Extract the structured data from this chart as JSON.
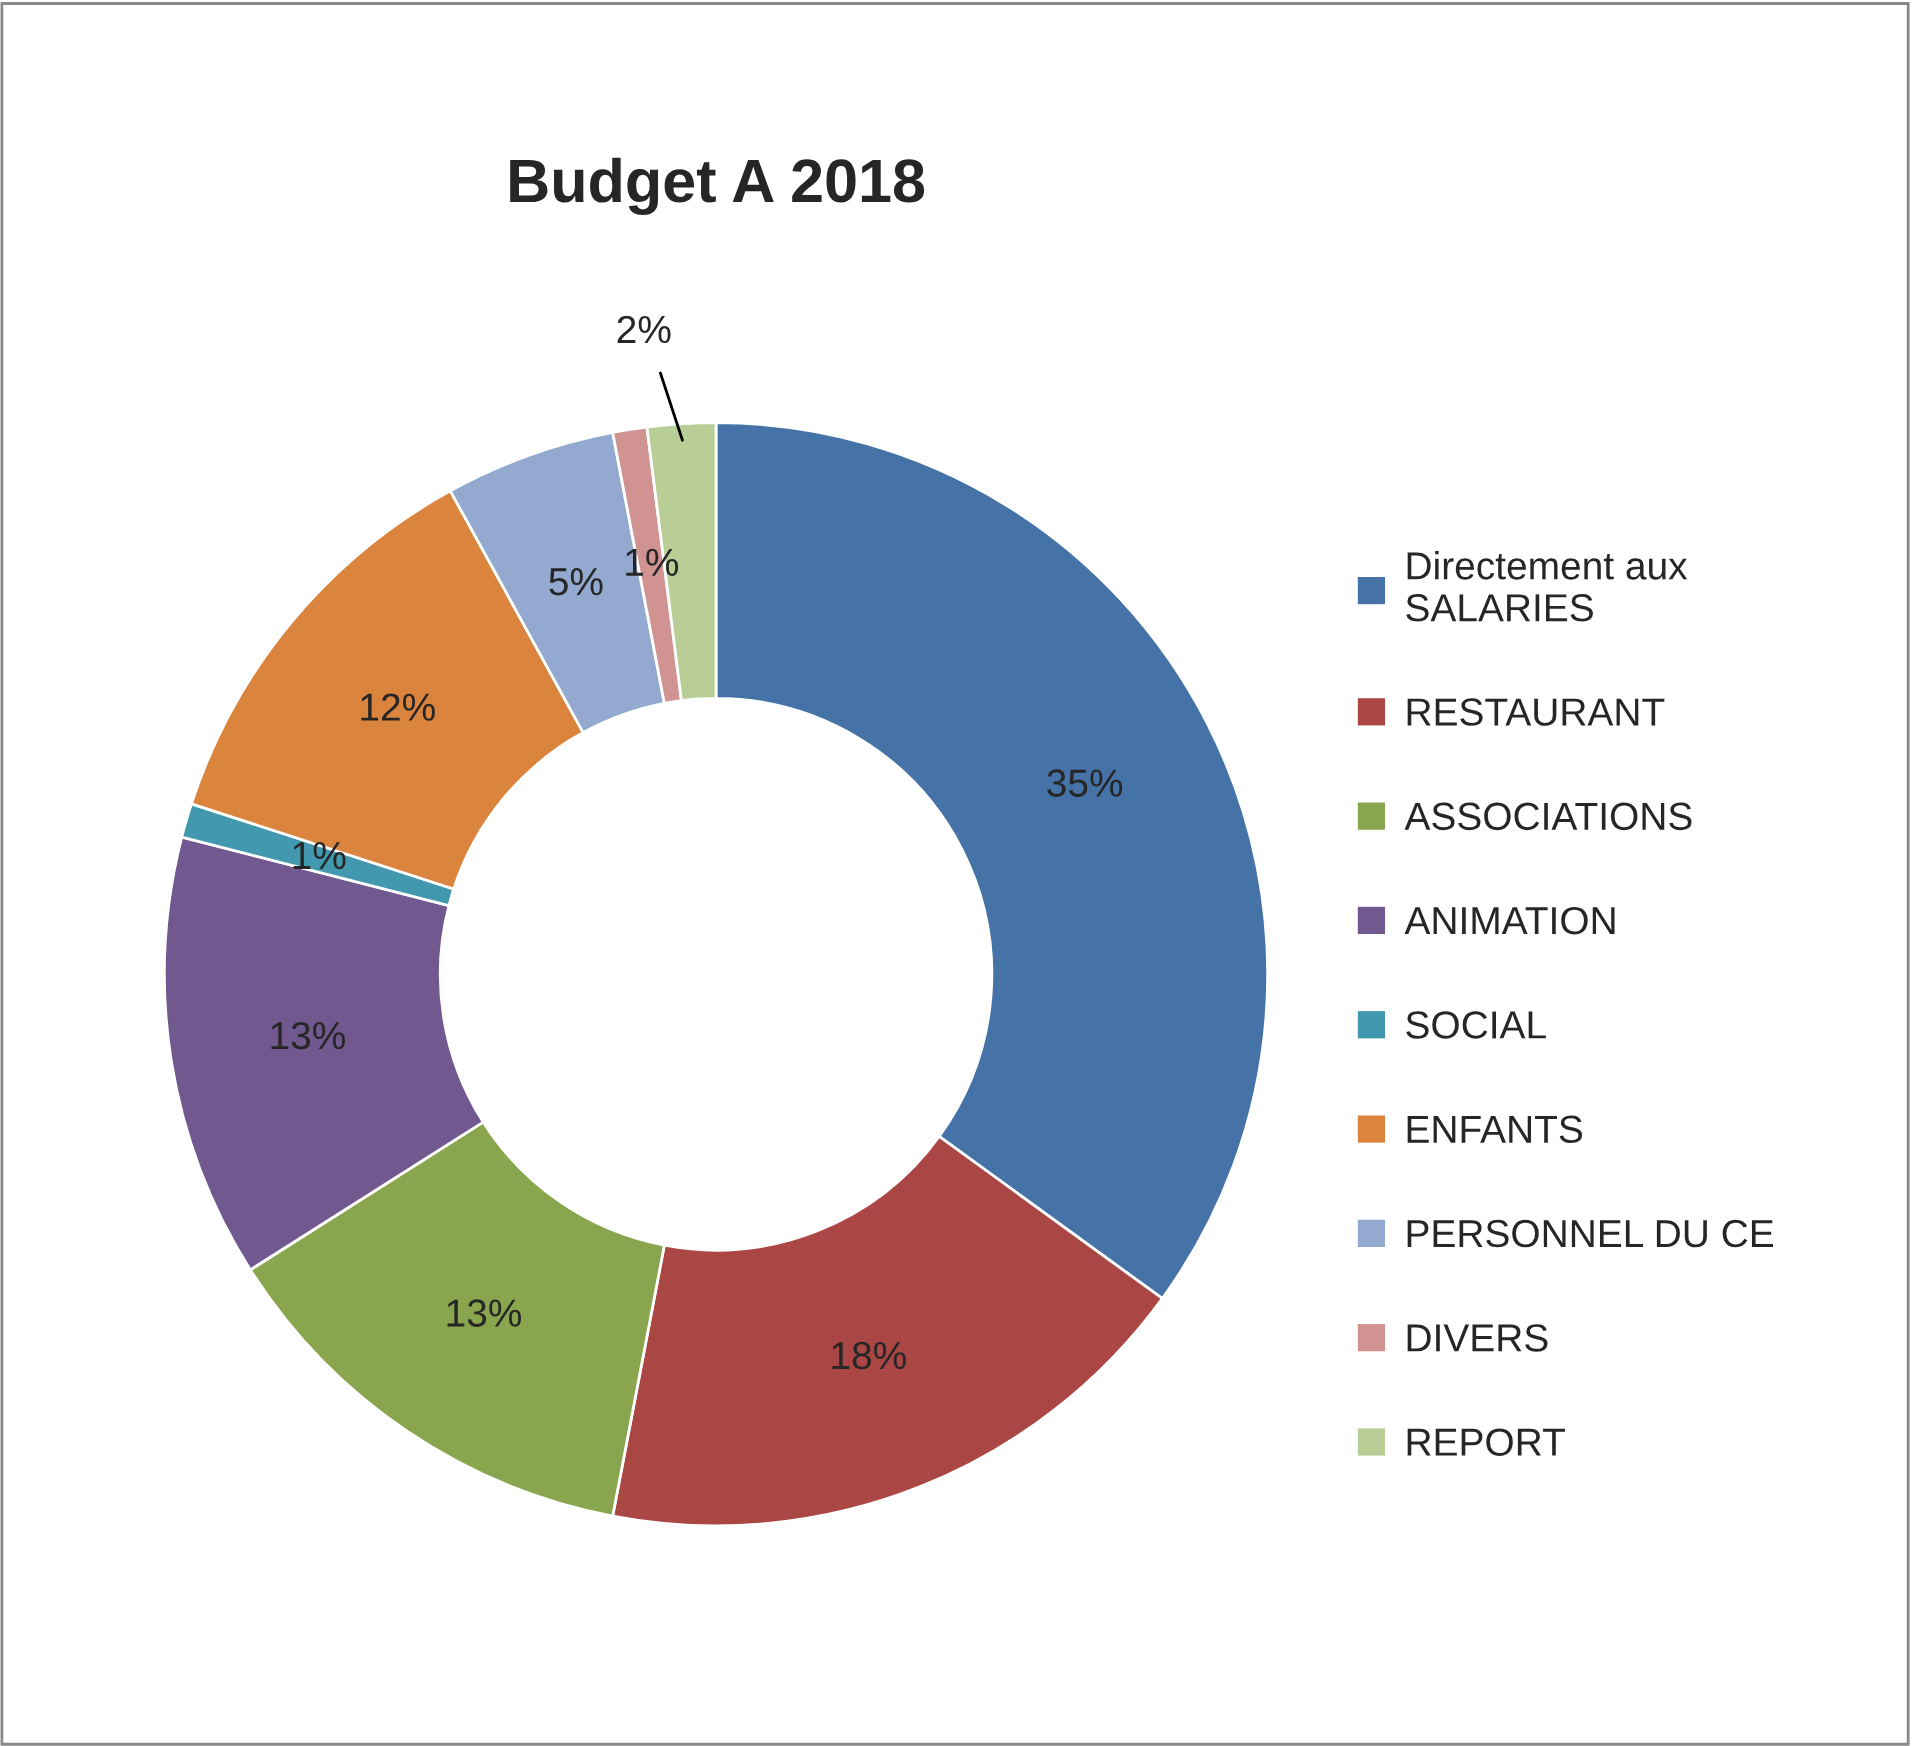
{
  "chart_data": {
    "type": "donut",
    "title": "Budget A 2018",
    "categories": [
      "Directement aux\nSALARIES",
      "RESTAURANT",
      "ASSOCIATIONS",
      "ANIMATION",
      "SOCIAL",
      "ENFANTS",
      "PERSONNEL DU CE",
      "DIVERS",
      "REPORT"
    ],
    "values": [
      35,
      18,
      13,
      13,
      1,
      12,
      5,
      1,
      2
    ],
    "value_labels": [
      "35%",
      "18%",
      "13%",
      "13%",
      "1%",
      "12%",
      "5%",
      "1%",
      "2%"
    ],
    "colors": [
      "#4572a7",
      "#aa4643",
      "#89a54e",
      "#71588f",
      "#4198af",
      "#db843d",
      "#93a9cf",
      "#d19392",
      "#b9cd96"
    ],
    "legend": "right"
  }
}
